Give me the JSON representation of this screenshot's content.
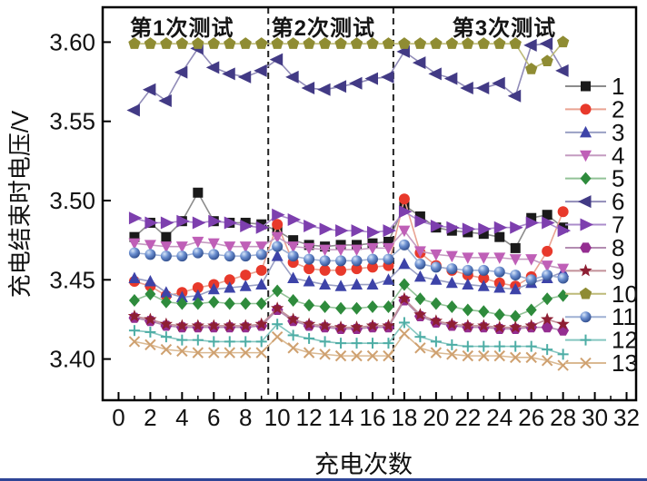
{
  "figure": {
    "bottom_border_color": "#2e4596"
  },
  "chart_data": {
    "type": "line",
    "title": "",
    "xlabel": "充电次数",
    "ylabel": "充电结束时电压/V",
    "xlim": [
      -1,
      32.6
    ],
    "ylim": [
      3.374,
      3.622
    ],
    "grid": false,
    "x_ticks": [
      0,
      2,
      4,
      6,
      8,
      10,
      12,
      14,
      16,
      18,
      20,
      22,
      24,
      26,
      28,
      30,
      32
    ],
    "x_minor_ticks": [
      1,
      3,
      5,
      7,
      9,
      11,
      13,
      15,
      17,
      19,
      21,
      23,
      25,
      27,
      29,
      31
    ],
    "y_ticks": [
      3.6,
      3.55,
      3.5,
      3.45,
      3.4
    ],
    "y_tick_labels": [
      "3.60",
      "3.55",
      "3.50",
      "3.45",
      "3.40"
    ],
    "annotations": [
      {
        "text": "第1次测试",
        "x_data": 4.0
      },
      {
        "text": "第2次测试",
        "x_data": 12.9
      },
      {
        "text": "第3次测试",
        "x_data": 24.3
      }
    ],
    "test_dividers_x": [
      9.43,
      17.31
    ],
    "legend_position": "inside-right",
    "x": [
      1,
      2,
      3,
      4,
      5,
      6,
      7,
      8,
      9,
      10,
      11,
      12,
      13,
      14,
      15,
      16,
      17,
      18,
      19,
      20,
      21,
      22,
      23,
      24,
      25,
      26,
      27,
      28
    ],
    "series": [
      {
        "name": "1",
        "marker": "square",
        "color": "#1a1a1a",
        "line_color": "#8c8c8c",
        "values": [
          3.477,
          3.486,
          3.477,
          3.487,
          3.505,
          3.487,
          3.486,
          3.486,
          3.485,
          3.481,
          3.475,
          3.472,
          3.471,
          3.472,
          3.472,
          3.473,
          3.474,
          3.497,
          3.49,
          3.483,
          3.481,
          3.48,
          3.479,
          3.477,
          3.47,
          3.489,
          3.491,
          3.483
        ]
      },
      {
        "name": "2",
        "marker": "circle",
        "color": "#e8392b",
        "line_color": "#e9a392",
        "values": [
          3.449,
          3.446,
          3.44,
          3.442,
          3.445,
          3.447,
          3.45,
          3.453,
          3.456,
          3.485,
          3.461,
          3.457,
          3.456,
          3.456,
          3.457,
          3.458,
          3.459,
          3.501,
          3.467,
          3.459,
          3.456,
          3.453,
          3.451,
          3.448,
          3.446,
          3.452,
          3.468,
          3.493
        ]
      },
      {
        "name": "3",
        "marker": "triangle-up",
        "color": "#3d43a8",
        "line_color": "#9aa0c4",
        "values": [
          3.451,
          3.449,
          3.442,
          3.439,
          3.44,
          3.444,
          3.445,
          3.446,
          3.447,
          3.465,
          3.451,
          3.449,
          3.447,
          3.446,
          3.447,
          3.447,
          3.45,
          3.46,
          3.452,
          3.45,
          3.448,
          3.447,
          3.446,
          3.445,
          3.444,
          3.448,
          3.451,
          3.455
        ]
      },
      {
        "name": "4",
        "marker": "triangle-down",
        "color": "#bf5fb7",
        "line_color": "#c49bc0",
        "values": [
          3.473,
          3.472,
          3.471,
          3.471,
          3.474,
          3.473,
          3.471,
          3.471,
          3.471,
          3.477,
          3.471,
          3.47,
          3.469,
          3.469,
          3.469,
          3.47,
          3.47,
          3.481,
          3.468,
          3.466,
          3.465,
          3.464,
          3.464,
          3.464,
          3.463,
          3.463,
          3.459,
          3.457
        ]
      },
      {
        "name": "5",
        "marker": "diamond",
        "color": "#2e8b3c",
        "line_color": "#92c297",
        "values": [
          3.437,
          3.441,
          3.436,
          3.435,
          3.435,
          3.436,
          3.435,
          3.435,
          3.435,
          3.443,
          3.437,
          3.434,
          3.433,
          3.432,
          3.432,
          3.433,
          3.433,
          3.447,
          3.438,
          3.435,
          3.433,
          3.431,
          3.43,
          3.428,
          3.427,
          3.431,
          3.438,
          3.44
        ]
      },
      {
        "name": "6",
        "marker": "triangle-left",
        "color": "#423a85",
        "line_color": "#918cb8",
        "values": [
          3.557,
          3.57,
          3.563,
          3.581,
          3.596,
          3.584,
          3.58,
          3.578,
          3.582,
          3.589,
          3.578,
          3.571,
          3.57,
          3.572,
          3.574,
          3.577,
          3.578,
          3.594,
          3.587,
          3.58,
          3.577,
          3.571,
          3.571,
          3.574,
          3.566,
          3.598,
          3.599,
          3.582
        ]
      },
      {
        "name": "7",
        "marker": "triangle-right",
        "color": "#7d3fae",
        "line_color": "#ab8ccb",
        "values": [
          3.489,
          3.486,
          3.486,
          3.487,
          3.486,
          3.487,
          3.486,
          3.484,
          3.483,
          3.491,
          3.488,
          3.484,
          3.482,
          3.481,
          3.481,
          3.48,
          3.481,
          3.493,
          3.487,
          3.484,
          3.483,
          3.482,
          3.482,
          3.483,
          3.483,
          3.486,
          3.486,
          3.481
        ]
      },
      {
        "name": "8",
        "marker": "hexagon",
        "color": "#942d90",
        "line_color": "#b38cb1",
        "values": [
          3.426,
          3.424,
          3.421,
          3.42,
          3.42,
          3.42,
          3.42,
          3.42,
          3.421,
          3.431,
          3.424,
          3.421,
          3.42,
          3.419,
          3.419,
          3.42,
          3.42,
          3.437,
          3.427,
          3.423,
          3.421,
          3.42,
          3.42,
          3.419,
          3.419,
          3.42,
          3.42,
          3.418
        ]
      },
      {
        "name": "9",
        "marker": "star",
        "color": "#8e1f33",
        "line_color": "#c29099",
        "values": [
          3.427,
          3.425,
          3.422,
          3.421,
          3.421,
          3.421,
          3.421,
          3.421,
          3.422,
          3.432,
          3.425,
          3.422,
          3.421,
          3.42,
          3.42,
          3.421,
          3.421,
          3.438,
          3.428,
          3.424,
          3.422,
          3.421,
          3.421,
          3.42,
          3.42,
          3.421,
          3.425,
          3.422
        ]
      },
      {
        "name": "10",
        "marker": "pentagon",
        "color": "#8f8c33",
        "line_color": "#bdba78",
        "values": [
          3.599,
          3.599,
          3.599,
          3.599,
          3.599,
          3.599,
          3.599,
          3.599,
          3.599,
          3.599,
          3.599,
          3.599,
          3.599,
          3.599,
          3.599,
          3.599,
          3.599,
          3.599,
          3.599,
          3.599,
          3.599,
          3.599,
          3.599,
          3.599,
          3.599,
          3.583,
          3.588,
          3.6
        ]
      },
      {
        "name": "11",
        "marker": "sphere",
        "color": "#4a6fbd",
        "line_color": "#9fb1d4",
        "values": [
          3.467,
          3.466,
          3.465,
          3.465,
          3.467,
          3.466,
          3.465,
          3.465,
          3.466,
          3.471,
          3.465,
          3.463,
          3.462,
          3.462,
          3.462,
          3.463,
          3.463,
          3.472,
          3.46,
          3.458,
          3.457,
          3.456,
          3.456,
          3.455,
          3.453,
          3.45,
          3.453,
          3.451
        ]
      },
      {
        "name": "12",
        "marker": "plus",
        "color": "#4dada5",
        "line_color": "#85c6c0",
        "values": [
          3.418,
          3.417,
          3.414,
          3.412,
          3.412,
          3.411,
          3.411,
          3.411,
          3.411,
          3.422,
          3.415,
          3.413,
          3.411,
          3.41,
          3.41,
          3.41,
          3.41,
          3.423,
          3.414,
          3.411,
          3.409,
          3.408,
          3.408,
          3.408,
          3.408,
          3.408,
          3.406,
          3.403
        ]
      },
      {
        "name": "13",
        "marker": "cross",
        "color": "#cfa170",
        "line_color": "#dab992",
        "values": [
          3.411,
          3.409,
          3.406,
          3.405,
          3.404,
          3.404,
          3.404,
          3.404,
          3.404,
          3.414,
          3.407,
          3.404,
          3.403,
          3.402,
          3.402,
          3.402,
          3.402,
          3.416,
          3.407,
          3.404,
          3.403,
          3.402,
          3.402,
          3.402,
          3.401,
          3.401,
          3.399,
          3.396
        ]
      }
    ]
  }
}
